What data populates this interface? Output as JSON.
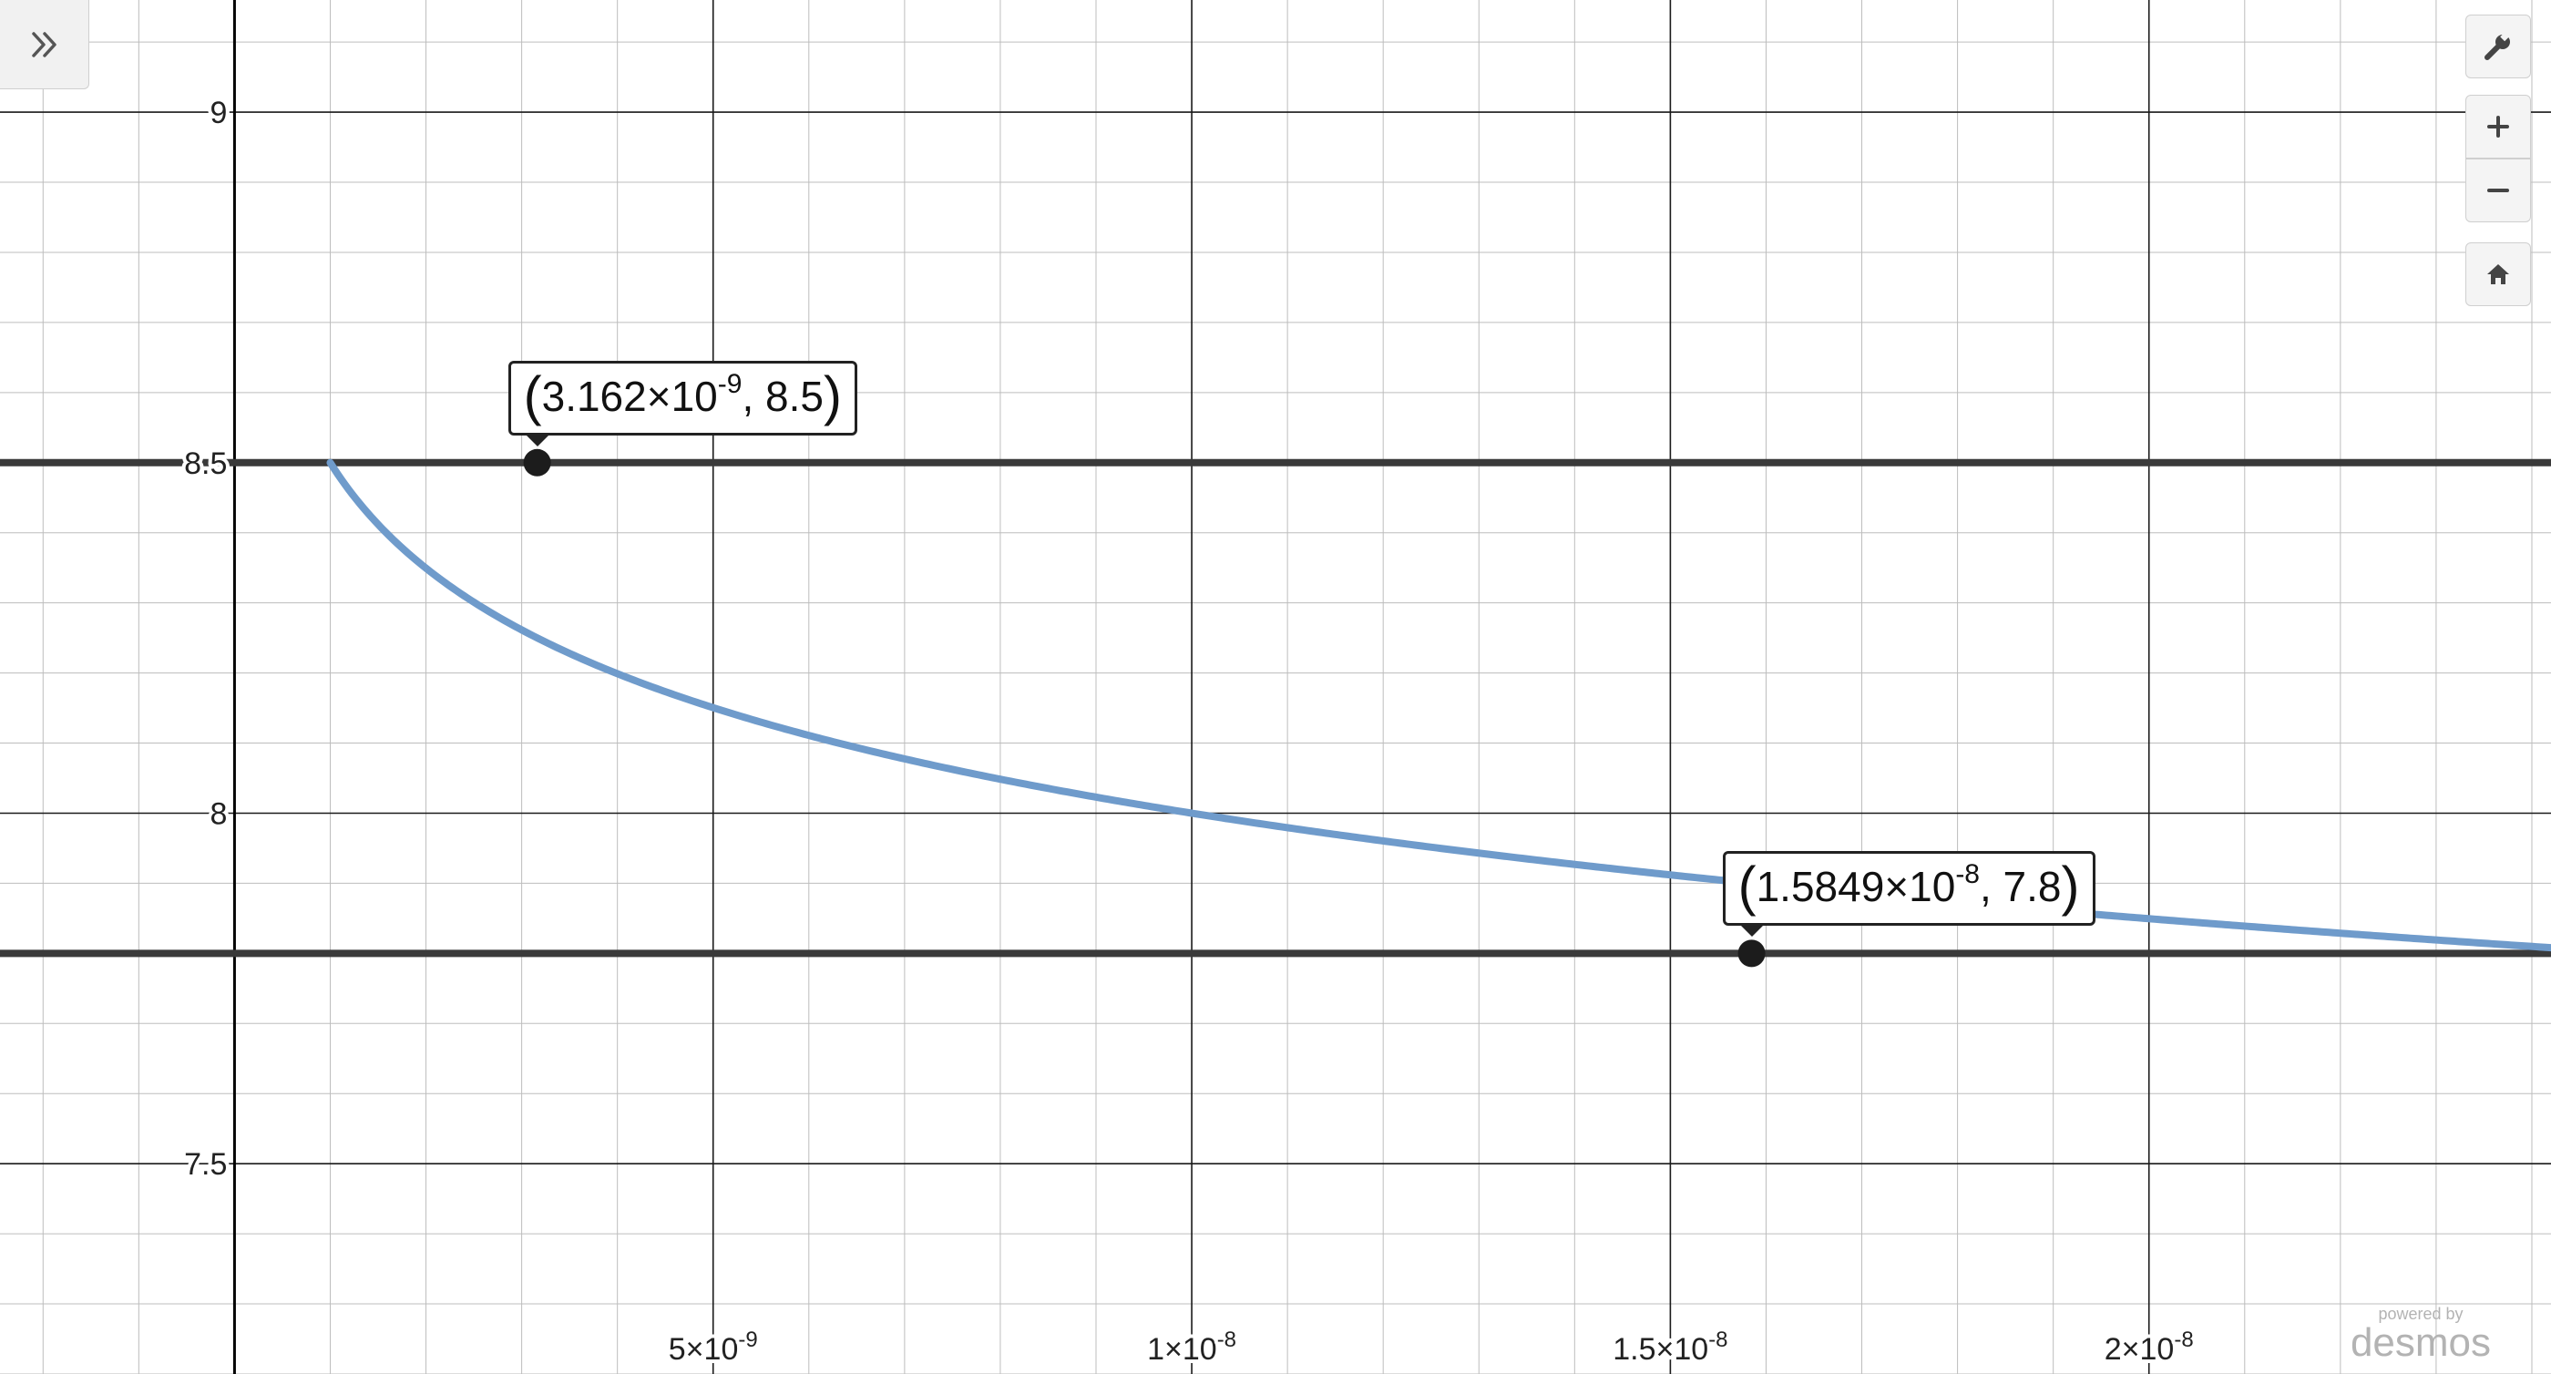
{
  "graph": {
    "x_axis_ticks": [
      {
        "value": 5e-09,
        "mantissa": "5",
        "exponent": "-9"
      },
      {
        "value": 1e-08,
        "mantissa": "1",
        "exponent": "-8"
      },
      {
        "value": 1.5e-08,
        "mantissa": "1.5",
        "exponent": "-8"
      },
      {
        "value": 2e-08,
        "mantissa": "2",
        "exponent": "-8"
      }
    ],
    "y_axis_ticks": [
      {
        "value": 9,
        "label": "9"
      },
      {
        "value": 8.5,
        "label": "8.5"
      },
      {
        "value": 8,
        "label": "8"
      },
      {
        "value": 7.5,
        "label": "7.5"
      }
    ],
    "x_range": [
      -2.45e-09,
      2.42e-08
    ],
    "y_range": [
      7.2,
      9.16
    ],
    "horizontal_lines": [
      8.5,
      7.8
    ],
    "curve_color": "#6f9bcb",
    "points": [
      {
        "x": 3.162e-09,
        "y": 8.5,
        "label_x": "3.162",
        "label_exp": "-9",
        "label_y": "8.5"
      },
      {
        "x": 1.5849e-08,
        "y": 7.8,
        "label_x": "1.5849",
        "label_exp": "-8",
        "label_y": "7.8"
      }
    ]
  },
  "controls": {
    "expand_icon": "double-chevron-right-icon",
    "settings_icon": "wrench-icon",
    "zoom_in_icon": "plus-icon",
    "zoom_out_icon": "minus-icon",
    "home_icon": "home-icon"
  },
  "branding": {
    "powered_by": "powered by",
    "name": "desmos"
  }
}
